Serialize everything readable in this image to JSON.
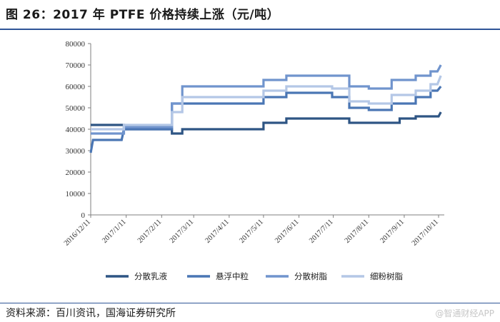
{
  "header": {
    "title": "图 26：2017 年 PTFE 价格持续上涨（元/吨）"
  },
  "footer": {
    "source": "资料来源：百川资讯，国海证券研究所",
    "watermark": "@智通财经APP"
  },
  "chart_data": {
    "type": "line",
    "title": "图 26：2017 年 PTFE 价格持续上涨（元/吨）",
    "xlabel": "",
    "ylabel": "",
    "ylim": [
      0,
      80000
    ],
    "yticks": [
      0,
      10000,
      20000,
      30000,
      40000,
      50000,
      60000,
      70000,
      80000
    ],
    "xlim": [
      "2016-12-11",
      "2017-10-16"
    ],
    "xticks": [
      "2016/12/11",
      "2017/1/11",
      "2017/2/11",
      "2017/3/11",
      "2017/4/11",
      "2017/5/11",
      "2017/6/11",
      "2017/7/11",
      "2017/8/11",
      "2017/9/11",
      "2017/10/11"
    ],
    "xtick_dates": [
      "2016-12-11",
      "2017-01-11",
      "2017-02-11",
      "2017-03-11",
      "2017-04-11",
      "2017-05-11",
      "2017-06-11",
      "2017-07-11",
      "2017-08-11",
      "2017-09-11",
      "2017-10-11"
    ],
    "grid": false,
    "legend_position": "bottom",
    "series": [
      {
        "name": "分散乳液",
        "color": "#2e5584",
        "points": [
          [
            "2016-12-11",
            42000
          ],
          [
            "2017-01-09",
            42000
          ],
          [
            "2017-01-09",
            40000
          ],
          [
            "2017-02-20",
            40000
          ],
          [
            "2017-02-20",
            38000
          ],
          [
            "2017-03-01",
            38000
          ],
          [
            "2017-03-01",
            40000
          ],
          [
            "2017-05-11",
            40000
          ],
          [
            "2017-05-11",
            43000
          ],
          [
            "2017-05-31",
            43000
          ],
          [
            "2017-05-31",
            45000
          ],
          [
            "2017-07-25",
            45000
          ],
          [
            "2017-07-25",
            43000
          ],
          [
            "2017-09-07",
            43000
          ],
          [
            "2017-09-07",
            45000
          ],
          [
            "2017-09-21",
            45000
          ],
          [
            "2017-09-21",
            46000
          ],
          [
            "2017-10-11",
            46000
          ],
          [
            "2017-10-13",
            48000
          ]
        ]
      },
      {
        "name": "悬浮中粒",
        "color": "#4a76b4",
        "points": [
          [
            "2016-12-11",
            29000
          ],
          [
            "2016-12-13",
            35000
          ],
          [
            "2017-01-07",
            35000
          ],
          [
            "2017-01-09",
            40000
          ],
          [
            "2017-02-20",
            40000
          ],
          [
            "2017-02-20",
            52000
          ],
          [
            "2017-03-01",
            52000
          ],
          [
            "2017-03-01",
            52000
          ],
          [
            "2017-05-11",
            52000
          ],
          [
            "2017-05-11",
            55000
          ],
          [
            "2017-05-31",
            55000
          ],
          [
            "2017-05-31",
            57000
          ],
          [
            "2017-07-10",
            57000
          ],
          [
            "2017-07-10",
            55000
          ],
          [
            "2017-07-25",
            55000
          ],
          [
            "2017-07-25",
            50000
          ],
          [
            "2017-08-11",
            50000
          ],
          [
            "2017-08-11",
            49000
          ],
          [
            "2017-08-31",
            49000
          ],
          [
            "2017-08-31",
            52000
          ],
          [
            "2017-09-21",
            52000
          ],
          [
            "2017-09-21",
            55000
          ],
          [
            "2017-10-04",
            55000
          ],
          [
            "2017-10-04",
            58000
          ],
          [
            "2017-10-10",
            58000
          ],
          [
            "2017-10-13",
            60000
          ]
        ]
      },
      {
        "name": "分散树脂",
        "color": "#7094cd",
        "points": [
          [
            "2016-12-11",
            38000
          ],
          [
            "2017-01-09",
            38000
          ],
          [
            "2017-01-09",
            41000
          ],
          [
            "2017-02-20",
            41000
          ],
          [
            "2017-02-20",
            52000
          ],
          [
            "2017-03-01",
            52000
          ],
          [
            "2017-03-01",
            60000
          ],
          [
            "2017-05-11",
            60000
          ],
          [
            "2017-05-11",
            63000
          ],
          [
            "2017-05-31",
            63000
          ],
          [
            "2017-05-31",
            65000
          ],
          [
            "2017-07-25",
            65000
          ],
          [
            "2017-07-25",
            60000
          ],
          [
            "2017-08-11",
            60000
          ],
          [
            "2017-08-11",
            59000
          ],
          [
            "2017-08-31",
            59000
          ],
          [
            "2017-08-31",
            63000
          ],
          [
            "2017-09-21",
            63000
          ],
          [
            "2017-09-21",
            65000
          ],
          [
            "2017-10-04",
            65000
          ],
          [
            "2017-10-04",
            67000
          ],
          [
            "2017-10-10",
            67000
          ],
          [
            "2017-10-13",
            70000
          ]
        ]
      },
      {
        "name": "细粉树脂",
        "color": "#b4c7e6",
        "points": [
          [
            "2016-12-11",
            40000
          ],
          [
            "2017-01-09",
            40000
          ],
          [
            "2017-01-09",
            42000
          ],
          [
            "2017-02-20",
            42000
          ],
          [
            "2017-02-20",
            48000
          ],
          [
            "2017-03-01",
            48000
          ],
          [
            "2017-03-01",
            55000
          ],
          [
            "2017-05-11",
            55000
          ],
          [
            "2017-05-11",
            58000
          ],
          [
            "2017-05-31",
            58000
          ],
          [
            "2017-05-31",
            60000
          ],
          [
            "2017-07-10",
            60000
          ],
          [
            "2017-07-10",
            59000
          ],
          [
            "2017-07-25",
            59000
          ],
          [
            "2017-07-25",
            53000
          ],
          [
            "2017-08-11",
            53000
          ],
          [
            "2017-08-11",
            52000
          ],
          [
            "2017-08-31",
            52000
          ],
          [
            "2017-08-31",
            56000
          ],
          [
            "2017-09-21",
            56000
          ],
          [
            "2017-09-21",
            58000
          ],
          [
            "2017-10-04",
            58000
          ],
          [
            "2017-10-04",
            61000
          ],
          [
            "2017-10-10",
            61000
          ],
          [
            "2017-10-13",
            65000
          ]
        ]
      }
    ]
  }
}
